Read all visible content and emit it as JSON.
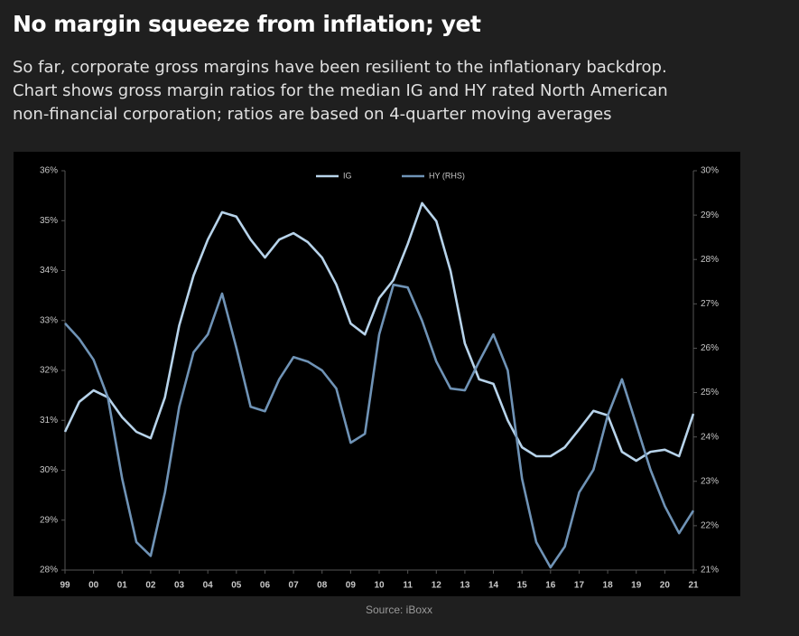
{
  "chart_data": {
    "type": "line",
    "title": "No margin squeeze from inflation; yet",
    "subtitle": [
      "So far, corporate gross margins have been resilient to the inflationary backdrop.",
      "Chart shows gross margin ratios for the median IG and HY rated North American",
      "non-financial corporation; ratios are based on 4-quarter moving averages"
    ],
    "source": "Source: iBoxx",
    "legend": "top",
    "x": [
      1999,
      1999.5,
      2000,
      2000.5,
      2001,
      2001.5,
      2002,
      2002.5,
      2003,
      2003.5,
      2004,
      2004.5,
      2005,
      2005.5,
      2006,
      2006.5,
      2007,
      2007.5,
      2008,
      2008.5,
      2009,
      2009.5,
      2010,
      2010.5,
      2011,
      2011.5,
      2012,
      2012.5,
      2013,
      2013.5,
      2014,
      2014.5,
      2015,
      2015.5,
      2016,
      2016.5,
      2017,
      2017.5,
      2018,
      2018.5,
      2019,
      2019.5,
      2020,
      2020.5,
      2021
    ],
    "series": [
      {
        "name": "IG",
        "color": "#b7d3ea",
        "axis": "y",
        "values": [
          30.77,
          31.37,
          31.6,
          31.46,
          31.06,
          30.77,
          30.64,
          31.46,
          32.9,
          33.9,
          34.62,
          35.17,
          35.08,
          34.62,
          34.26,
          34.62,
          34.75,
          34.57,
          34.26,
          33.72,
          32.94,
          32.72,
          33.45,
          33.81,
          34.53,
          35.35,
          34.99,
          33.99,
          32.54,
          31.82,
          31.73,
          31.0,
          30.46,
          30.28,
          30.28,
          30.46,
          30.82,
          31.19,
          31.1,
          30.37,
          30.19,
          30.37,
          30.41,
          30.28,
          31.13
        ]
      },
      {
        "name": "HY (RHS)",
        "color": "#6f93b6",
        "axis": "y2",
        "values": [
          26.56,
          26.21,
          25.74,
          24.89,
          23.06,
          21.63,
          21.32,
          22.75,
          24.68,
          25.91,
          26.31,
          27.23,
          26.01,
          24.68,
          24.58,
          25.3,
          25.8,
          25.7,
          25.5,
          25.09,
          23.87,
          24.07,
          26.31,
          27.43,
          27.37,
          26.62,
          25.7,
          25.09,
          25.05,
          25.7,
          26.31,
          25.5,
          23.06,
          21.63,
          21.06,
          21.53,
          22.75,
          23.26,
          24.48,
          25.3,
          24.28,
          23.26,
          22.44,
          21.83,
          22.34
        ]
      }
    ],
    "xlim": [
      1999,
      2021
    ],
    "xticks": [
      {
        "value": 1999,
        "label": "99"
      },
      {
        "value": 2000,
        "label": "00"
      },
      {
        "value": 2001,
        "label": "01"
      },
      {
        "value": 2002,
        "label": "02"
      },
      {
        "value": 2003,
        "label": "03"
      },
      {
        "value": 2004,
        "label": "04"
      },
      {
        "value": 2005,
        "label": "05"
      },
      {
        "value": 2006,
        "label": "06"
      },
      {
        "value": 2007,
        "label": "07"
      },
      {
        "value": 2008,
        "label": "08"
      },
      {
        "value": 2009,
        "label": "09"
      },
      {
        "value": 2010,
        "label": "10"
      },
      {
        "value": 2011,
        "label": "11"
      },
      {
        "value": 2012,
        "label": "12"
      },
      {
        "value": 2013,
        "label": "13"
      },
      {
        "value": 2014,
        "label": "14"
      },
      {
        "value": 2015,
        "label": "15"
      },
      {
        "value": 2016,
        "label": "16"
      },
      {
        "value": 2017,
        "label": "17"
      },
      {
        "value": 2018,
        "label": "18"
      },
      {
        "value": 2019,
        "label": "19"
      },
      {
        "value": 2020,
        "label": "20"
      },
      {
        "value": 2021,
        "label": "21"
      }
    ],
    "ylim": [
      28,
      36
    ],
    "yticks": [
      {
        "value": 28,
        "label": "28%"
      },
      {
        "value": 29,
        "label": "29%"
      },
      {
        "value": 30,
        "label": "30%"
      },
      {
        "value": 31,
        "label": "31%"
      },
      {
        "value": 32,
        "label": "32%"
      },
      {
        "value": 33,
        "label": "33%"
      },
      {
        "value": 34,
        "label": "34%"
      },
      {
        "value": 35,
        "label": "35%"
      },
      {
        "value": 36,
        "label": "36%"
      }
    ],
    "y2lim": [
      21,
      30
    ],
    "y2ticks": [
      {
        "value": 21,
        "label": "21%"
      },
      {
        "value": 22,
        "label": "22%"
      },
      {
        "value": 23,
        "label": "23%"
      },
      {
        "value": 24,
        "label": "24%"
      },
      {
        "value": 25,
        "label": "25%"
      },
      {
        "value": 26,
        "label": "26%"
      },
      {
        "value": 27,
        "label": "27%"
      },
      {
        "value": 28,
        "label": "28%"
      },
      {
        "value": 29,
        "label": "29%"
      },
      {
        "value": 30,
        "label": "30%"
      }
    ],
    "grid": false
  }
}
